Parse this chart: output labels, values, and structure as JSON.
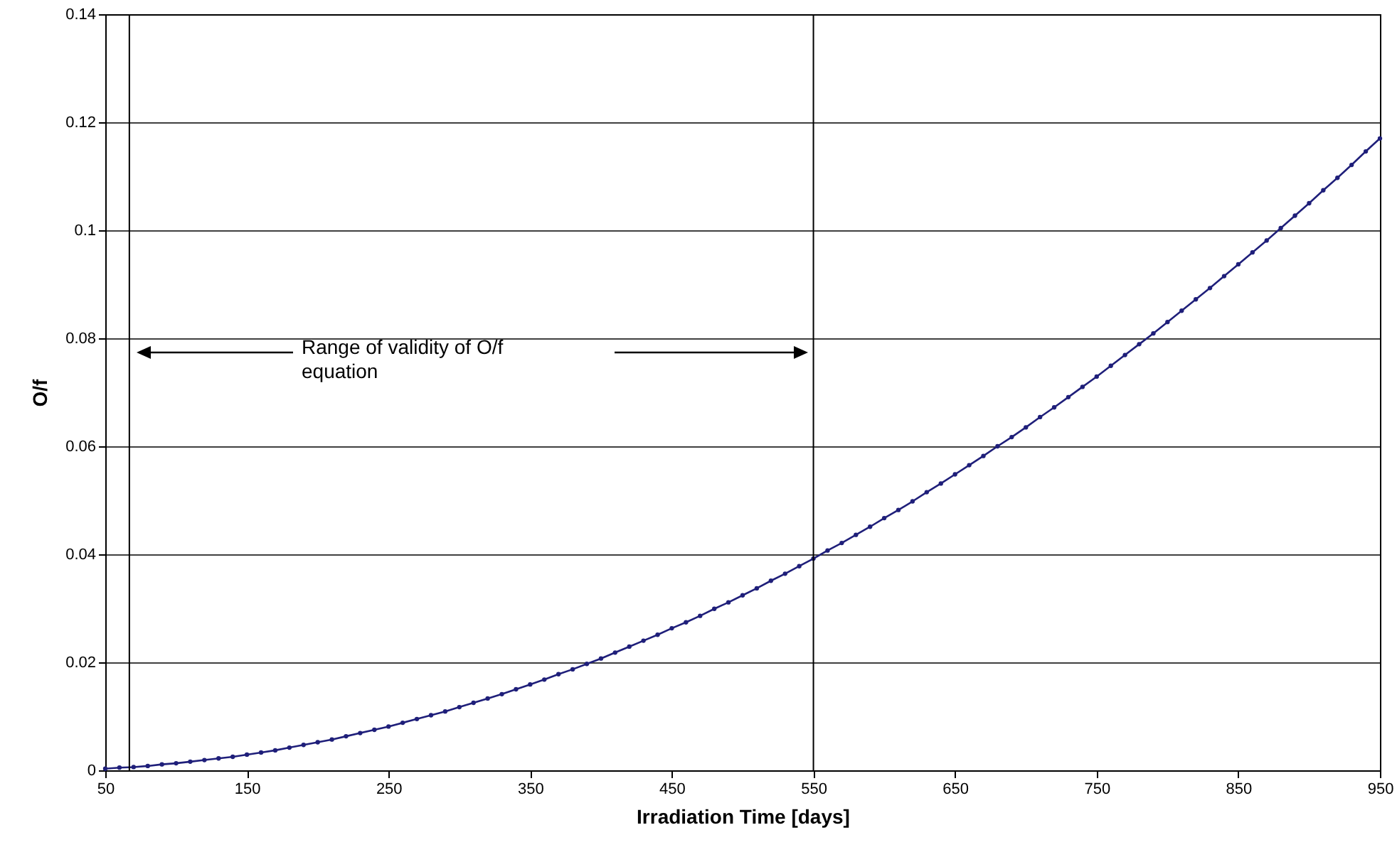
{
  "chart_data": {
    "type": "line",
    "xlabel": "Irradiation Time [days]",
    "ylabel": "O/f",
    "x": [
      50,
      60,
      70,
      80,
      90,
      100,
      110,
      120,
      130,
      140,
      150,
      160,
      170,
      180,
      190,
      200,
      210,
      220,
      230,
      240,
      250,
      260,
      270,
      280,
      290,
      300,
      310,
      320,
      330,
      340,
      350,
      360,
      370,
      380,
      390,
      400,
      410,
      420,
      430,
      440,
      450,
      460,
      470,
      480,
      490,
      500,
      510,
      520,
      530,
      540,
      550,
      560,
      570,
      580,
      590,
      600,
      610,
      620,
      630,
      640,
      650,
      660,
      670,
      680,
      690,
      700,
      710,
      720,
      730,
      740,
      750,
      760,
      770,
      780,
      790,
      800,
      810,
      820,
      830,
      840,
      850,
      860,
      870,
      880,
      890,
      900,
      910,
      920,
      930,
      940,
      950
    ],
    "series": [
      {
        "color": "#1f1f7a",
        "values": [
          0.0003,
          0.0005,
          0.0006,
          0.0008,
          0.0011,
          0.0013,
          0.0016,
          0.0019,
          0.0022,
          0.0025,
          0.0029,
          0.0033,
          0.0037,
          0.0042,
          0.0047,
          0.0052,
          0.0057,
          0.0063,
          0.0069,
          0.0075,
          0.0081,
          0.0088,
          0.0095,
          0.0102,
          0.0109,
          0.0117,
          0.0125,
          0.0133,
          0.0141,
          0.015,
          0.0159,
          0.0168,
          0.0178,
          0.0187,
          0.0197,
          0.0207,
          0.0218,
          0.0229,
          0.024,
          0.0251,
          0.0263,
          0.0274,
          0.0286,
          0.0299,
          0.0311,
          0.0324,
          0.0337,
          0.0351,
          0.0364,
          0.0378,
          0.0392,
          0.0407,
          0.0421,
          0.0436,
          0.0451,
          0.0467,
          0.0482,
          0.0498,
          0.0515,
          0.0531,
          0.0548,
          0.0565,
          0.0582,
          0.06,
          0.0617,
          0.0635,
          0.0654,
          0.0672,
          0.0691,
          0.071,
          0.0729,
          0.0749,
          0.0769,
          0.0789,
          0.0809,
          0.083,
          0.0851,
          0.0872,
          0.0893,
          0.0915,
          0.0937,
          0.0959,
          0.0981,
          0.1004,
          0.1027,
          0.105,
          0.1074,
          0.1097,
          0.1121,
          0.1146,
          0.117
        ]
      }
    ],
    "xlim": [
      50,
      950
    ],
    "xticks": [
      50,
      150,
      250,
      350,
      450,
      550,
      650,
      750,
      850,
      950
    ],
    "ylim": [
      0,
      0.14
    ],
    "yticks": [
      0,
      0.02,
      0.04,
      0.06,
      0.08,
      0.1,
      0.12,
      0.14
    ],
    "grid": "y",
    "marker": "circle",
    "line_style": "solid",
    "ref_lines": [
      {
        "axis": "x",
        "value": 67,
        "color": "#000000"
      },
      {
        "axis": "x",
        "value": 550,
        "color": "#000000"
      }
    ],
    "annotations": [
      "Range of validity of O/f equation"
    ]
  }
}
